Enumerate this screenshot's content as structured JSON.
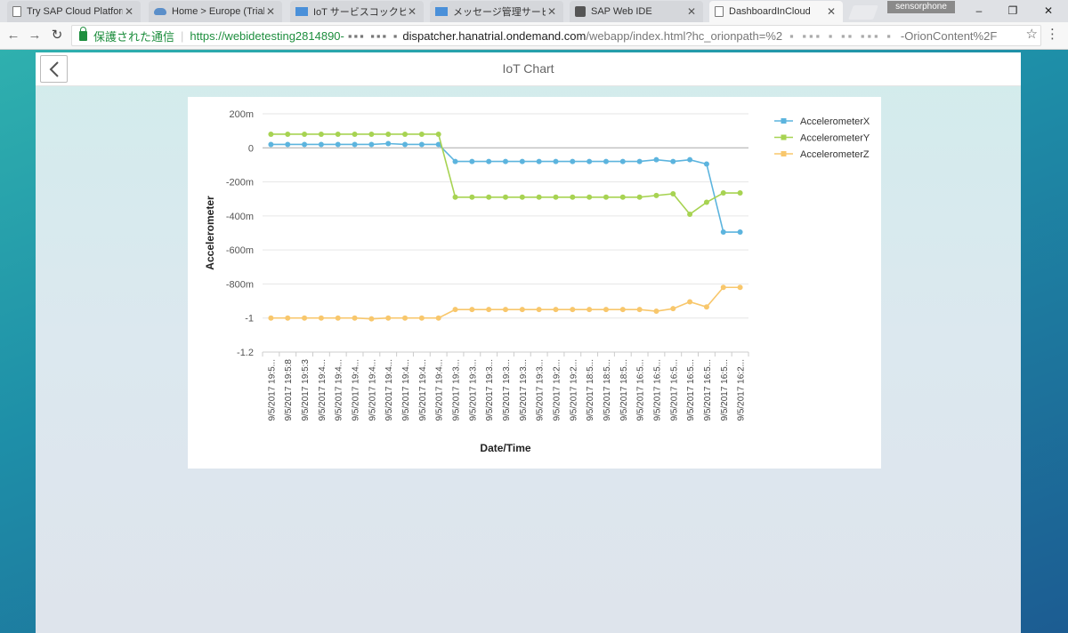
{
  "browser": {
    "tabs": [
      {
        "title": "Try SAP Cloud Platform",
        "icon": "document-icon"
      },
      {
        "title": "Home > Europe (Trial)",
        "icon": "cloud-icon"
      },
      {
        "title": "IoT サービスコックピット",
        "icon": "sap-icon"
      },
      {
        "title": "メッセージ管理サービスコッ",
        "icon": "sap-icon"
      },
      {
        "title": "SAP Web IDE",
        "icon": "webide-icon"
      },
      {
        "title": "DashboardInCloud",
        "icon": "document-icon"
      }
    ],
    "active_tab": 5,
    "profile_name": "sensorphone",
    "secure_label": "保護された通信",
    "url_start": "https://webidetesting2814890-",
    "url_host": "dispatcher.hanatrial.ondemand.com",
    "url_path": "/webapp/index.html?hc_orionpath=%2",
    "url_end": "-OrionContent%2F"
  },
  "app": {
    "title": "IoT Chart"
  },
  "colors": {
    "x": "#5cb4de",
    "y": "#a7d352",
    "z": "#f8c76c"
  },
  "chart_data": {
    "type": "line",
    "title": "",
    "xlabel": "Date/Time",
    "ylabel": "Accelerometer",
    "ylim": [
      -1.2,
      0.2
    ],
    "yticks": [
      {
        "value": 0.2,
        "label": "200m"
      },
      {
        "value": 0,
        "label": "0"
      },
      {
        "value": -0.2,
        "label": "-200m"
      },
      {
        "value": -0.4,
        "label": "-400m"
      },
      {
        "value": -0.6,
        "label": "-600m"
      },
      {
        "value": -0.8,
        "label": "-800m"
      },
      {
        "value": -1,
        "label": "-1"
      },
      {
        "value": -1.2,
        "label": "-1.2"
      }
    ],
    "grid": true,
    "legend": "top-right",
    "categories": [
      "9/5/2017 19:5...",
      "9/5/2017 19:5:8",
      "9/5/2017 19:5:3",
      "9/5/2017 19:4...",
      "9/5/2017 19:4...",
      "9/5/2017 19:4...",
      "9/5/2017 19:4...",
      "9/5/2017 19:4...",
      "9/5/2017 19:4...",
      "9/5/2017 19:4...",
      "9/5/2017 19:4...",
      "9/5/2017 19:3...",
      "9/5/2017 19:3...",
      "9/5/2017 19:3...",
      "9/5/2017 19:3...",
      "9/5/2017 19:3...",
      "9/5/2017 19:3...",
      "9/5/2017 19:2...",
      "9/5/2017 19:2...",
      "9/5/2017 18:5...",
      "9/5/2017 18:5...",
      "9/5/2017 18:5...",
      "9/5/2017 16:5...",
      "9/5/2017 16:5...",
      "9/5/2017 16:5...",
      "9/5/2017 16:5...",
      "9/5/2017 16:5...",
      "9/5/2017 16:5...",
      "9/5/2017 16:2..."
    ],
    "series": [
      {
        "name": "AccelerometerX",
        "values": [
          0.02,
          0.02,
          0.02,
          0.02,
          0.02,
          0.02,
          0.02,
          0.025,
          0.02,
          0.02,
          0.02,
          -0.08,
          -0.08,
          -0.08,
          -0.08,
          -0.08,
          -0.08,
          -0.08,
          -0.08,
          -0.08,
          -0.08,
          -0.08,
          -0.08,
          -0.07,
          -0.08,
          -0.07,
          -0.095,
          -0.495,
          -0.495
        ]
      },
      {
        "name": "AccelerometerY",
        "values": [
          0.08,
          0.08,
          0.08,
          0.08,
          0.08,
          0.08,
          0.08,
          0.08,
          0.08,
          0.08,
          0.08,
          -0.29,
          -0.29,
          -0.29,
          -0.29,
          -0.29,
          -0.29,
          -0.29,
          -0.29,
          -0.29,
          -0.29,
          -0.29,
          -0.29,
          -0.28,
          -0.27,
          -0.39,
          -0.32,
          -0.265,
          -0.265
        ]
      },
      {
        "name": "AccelerometerZ",
        "values": [
          -1.0,
          -1.0,
          -1.0,
          -1.0,
          -1.0,
          -1.0,
          -1.005,
          -1.0,
          -1.0,
          -1.0,
          -1.0,
          -0.95,
          -0.95,
          -0.95,
          -0.95,
          -0.95,
          -0.95,
          -0.95,
          -0.95,
          -0.95,
          -0.95,
          -0.95,
          -0.95,
          -0.96,
          -0.945,
          -0.905,
          -0.935,
          -0.82,
          -0.82
        ]
      }
    ]
  }
}
